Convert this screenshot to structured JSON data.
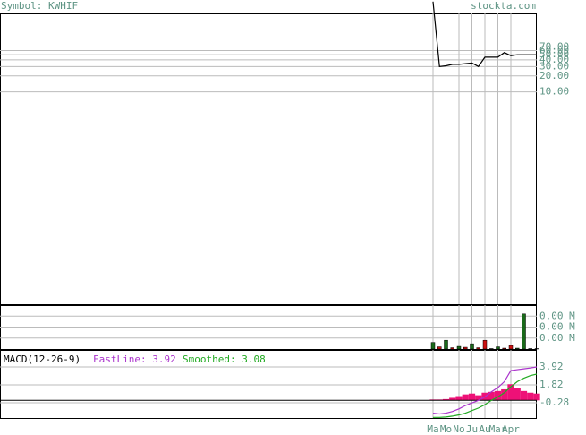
{
  "header": {
    "symbol": "Symbol: KWHIF",
    "site": "stockta.com"
  },
  "chart_data": [
    {
      "type": "line",
      "name": "price",
      "log_scale": true,
      "color": "#000000",
      "categories": [
        "Ma",
        null,
        "Mo",
        null,
        "No",
        null,
        "Ju",
        null,
        "Au",
        null,
        "Mar",
        null,
        "Apr",
        null,
        null,
        null,
        null
      ],
      "values": [
        500,
        30,
        31,
        33,
        33,
        34,
        35,
        30,
        45,
        45,
        45,
        55,
        48,
        50,
        50,
        50,
        50
      ],
      "ylim": [
        0.001,
        300
      ],
      "yticks": [
        {
          "value": 70,
          "label": "70.00"
        },
        {
          "value": 60,
          "label": "60.00"
        },
        {
          "value": 50,
          "label": "50.00"
        },
        {
          "value": 40,
          "label": "40.00"
        },
        {
          "value": 30,
          "label": "30.00"
        },
        {
          "value": 20,
          "label": "20.00"
        },
        {
          "value": 10,
          "label": "10.00"
        }
      ],
      "grid": true
    },
    {
      "type": "bar",
      "name": "volume",
      "values": [
        0.15,
        0.05,
        0.2,
        0.03,
        0.06,
        0.04,
        0.12,
        0.03,
        0.2,
        0.01,
        0.05,
        0.02,
        0.08,
        0.02,
        0.8,
        0.01,
        0.01
      ],
      "colors": [
        "#1a6a1a",
        "#cc1111",
        "#1a6a1a",
        "#cc1111",
        "#1a6a1a",
        "#cc1111",
        "#1a6a1a",
        "#cc1111",
        "#cc1111",
        "#1a6a1a",
        "#1a6a1a",
        "#cc1111",
        "#cc1111",
        "#1a6a1a",
        "#1a6a1a",
        "#cc1111",
        "#1a6a1a"
      ],
      "ylim": [
        0,
        1
      ],
      "yticks": [
        {
          "value": 0.75,
          "label": "0.00 M"
        },
        {
          "value": 0.5,
          "label": "0.00 M"
        },
        {
          "value": 0.25,
          "label": "0.00 M"
        }
      ],
      "grid": true
    },
    {
      "type": "macd",
      "title": "MACD(12-26-9)",
      "series": [
        {
          "name": "FastLine: 3.92",
          "color": "#aa33cc",
          "values": [
            -1.5,
            -1.6,
            -1.5,
            -1.3,
            -1.0,
            -0.6,
            -0.3,
            0,
            0.4,
            1.0,
            1.5,
            2.2,
            3.5,
            3.6,
            3.7,
            3.8,
            3.92
          ]
        },
        {
          "name": "Smoothed: 3.08",
          "color": "#22aa22",
          "values": [
            -2.0,
            -2.0,
            -1.95,
            -1.85,
            -1.7,
            -1.5,
            -1.2,
            -0.9,
            -0.5,
            0,
            0.4,
            0.9,
            1.6,
            2.2,
            2.6,
            2.9,
            3.08
          ]
        }
      ],
      "histogram": {
        "color": "#ee1177",
        "values": [
          0.1,
          0.1,
          0.15,
          0.3,
          0.5,
          0.7,
          0.8,
          0.6,
          0.9,
          1.0,
          1.1,
          1.3,
          1.9,
          1.4,
          1.1,
          0.9,
          0.8
        ]
      },
      "ylim": [
        -2.07,
        5.92
      ],
      "yticks": [
        3.92,
        1.82,
        -0.28
      ],
      "grid": true
    }
  ]
}
